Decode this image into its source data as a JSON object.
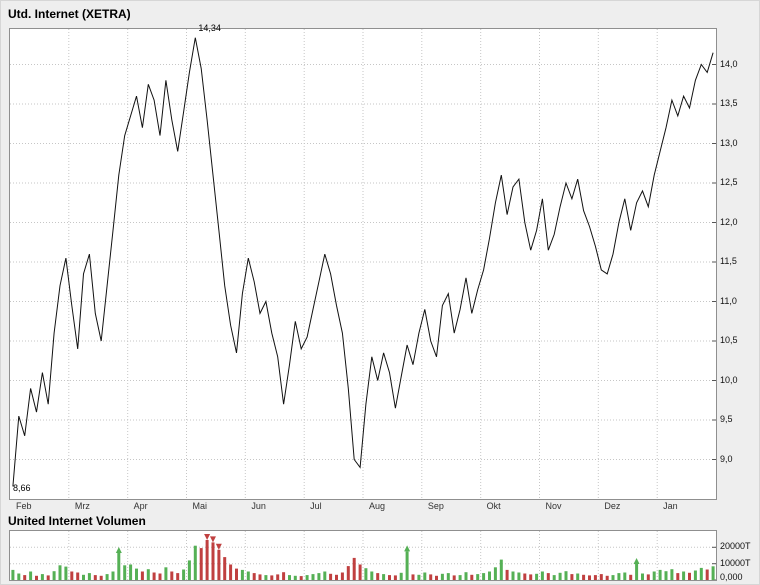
{
  "window": {
    "kind": "stock-chart-panel"
  },
  "colors": {
    "background": "#eeeeee",
    "plot_background": "#ffffff",
    "plot_border": "#8f8f8f",
    "grid": "#c6c6c6",
    "price_line": "#111111",
    "volume_up": "#55b055",
    "volume_down": "#c04040",
    "text": "#000000"
  },
  "chart_data": [
    {
      "type": "line",
      "title": "Utd. Internet (XETRA)",
      "xlabel": "",
      "ylabel": "",
      "legend": "none",
      "grid": "dotted",
      "x_tick_labels": [
        "Feb",
        "Mrz",
        "Apr",
        "Mai",
        "Jun",
        "Jul",
        "Aug",
        "Sep",
        "Okt",
        "Nov",
        "Dez",
        "Jan"
      ],
      "y_tick_labels": [
        "14,0",
        "13,5",
        "13,0",
        "12,5",
        "12,0",
        "11,5",
        "11,0",
        "10,5",
        "10,0",
        "9,5",
        "9,0"
      ],
      "y_tick_values": [
        14.0,
        13.5,
        13.0,
        12.5,
        12.0,
        11.5,
        11.0,
        10.5,
        10.0,
        9.5,
        9.0
      ],
      "ylim": [
        8.5,
        14.45
      ],
      "points_per_month": 10,
      "values": [
        8.66,
        9.55,
        9.3,
        9.9,
        9.6,
        10.1,
        9.7,
        10.6,
        11.2,
        11.55,
        10.95,
        10.4,
        11.35,
        11.6,
        10.85,
        10.5,
        11.2,
        11.9,
        12.6,
        13.1,
        13.35,
        13.6,
        13.2,
        13.75,
        13.55,
        13.1,
        13.8,
        13.3,
        12.9,
        13.4,
        13.9,
        14.34,
        13.95,
        13.3,
        12.6,
        11.9,
        11.2,
        10.7,
        10.35,
        11.1,
        11.55,
        11.25,
        10.85,
        11.0,
        10.6,
        10.3,
        9.7,
        10.2,
        10.75,
        10.4,
        10.55,
        10.9,
        11.25,
        11.6,
        11.35,
        10.95,
        10.6,
        9.9,
        9.0,
        8.9,
        9.7,
        10.3,
        10.0,
        10.35,
        10.1,
        9.65,
        10.05,
        10.45,
        10.2,
        10.6,
        10.9,
        10.5,
        10.3,
        10.95,
        11.1,
        10.6,
        10.9,
        11.3,
        10.85,
        11.15,
        11.4,
        11.8,
        12.25,
        12.6,
        12.1,
        12.45,
        12.55,
        12.0,
        11.65,
        11.9,
        12.3,
        11.65,
        11.85,
        12.2,
        12.5,
        12.3,
        12.55,
        12.15,
        11.95,
        11.7,
        11.4,
        11.35,
        11.6,
        12.0,
        12.3,
        11.9,
        12.25,
        12.4,
        12.2,
        12.6,
        12.9,
        13.2,
        13.55,
        13.35,
        13.6,
        13.45,
        13.8,
        14.0,
        13.9,
        14.15
      ],
      "annotations": [
        {
          "text": "14,34",
          "point_index": 31,
          "placement": "above"
        },
        {
          "text": "8,66",
          "point_index": 0,
          "placement": "below"
        }
      ]
    },
    {
      "type": "bar",
      "title": "United Internet Volumen",
      "xlabel": "",
      "ylabel": "",
      "legend": "none",
      "grid": "dotted",
      "y_tick_labels": [
        "20000T",
        "10000T",
        "0,000"
      ],
      "y_tick_values": [
        20000,
        10000,
        0
      ],
      "ylim": [
        0,
        30000
      ],
      "values": [
        6200,
        4000,
        3000,
        5200,
        2600,
        3600,
        2800,
        5400,
        9000,
        8200,
        5200,
        4600,
        3200,
        4200,
        3000,
        2600,
        3600,
        5200,
        16500,
        9000,
        9500,
        7000,
        5200,
        6600,
        4600,
        4000,
        7800,
        5200,
        4200,
        6400,
        12000,
        21000,
        19500,
        24500,
        23000,
        18500,
        14000,
        9500,
        7000,
        6200,
        5200,
        4200,
        3400,
        3000,
        2800,
        3400,
        4800,
        3000,
        2600,
        2400,
        3000,
        3600,
        4200,
        5200,
        3800,
        3200,
        4600,
        8500,
        13500,
        9500,
        7200,
        5200,
        4200,
        3600,
        3000,
        2800,
        4400,
        17500,
        3400,
        3200,
        4600,
        3400,
        2600,
        3800,
        4200,
        2800,
        3000,
        4800,
        3200,
        3600,
        4200,
        5200,
        7800,
        12500,
        6200,
        5200,
        4600,
        4000,
        3400,
        3800,
        5200,
        4200,
        3000,
        4400,
        5400,
        3600,
        4000,
        3200,
        2800,
        3000,
        3600,
        2600,
        3000,
        4200,
        4600,
        3200,
        9800,
        4000,
        3400,
        5200,
        6200,
        5400,
        6600,
        4200,
        5200,
        4400,
        5800,
        7400,
        6400,
        8400
      ],
      "markers": [
        {
          "index": 18,
          "direction": "up"
        },
        {
          "index": 33,
          "direction": "down"
        },
        {
          "index": 34,
          "direction": "down"
        },
        {
          "index": 35,
          "direction": "down"
        },
        {
          "index": 67,
          "direction": "up"
        },
        {
          "index": 106,
          "direction": "up"
        }
      ]
    }
  ]
}
